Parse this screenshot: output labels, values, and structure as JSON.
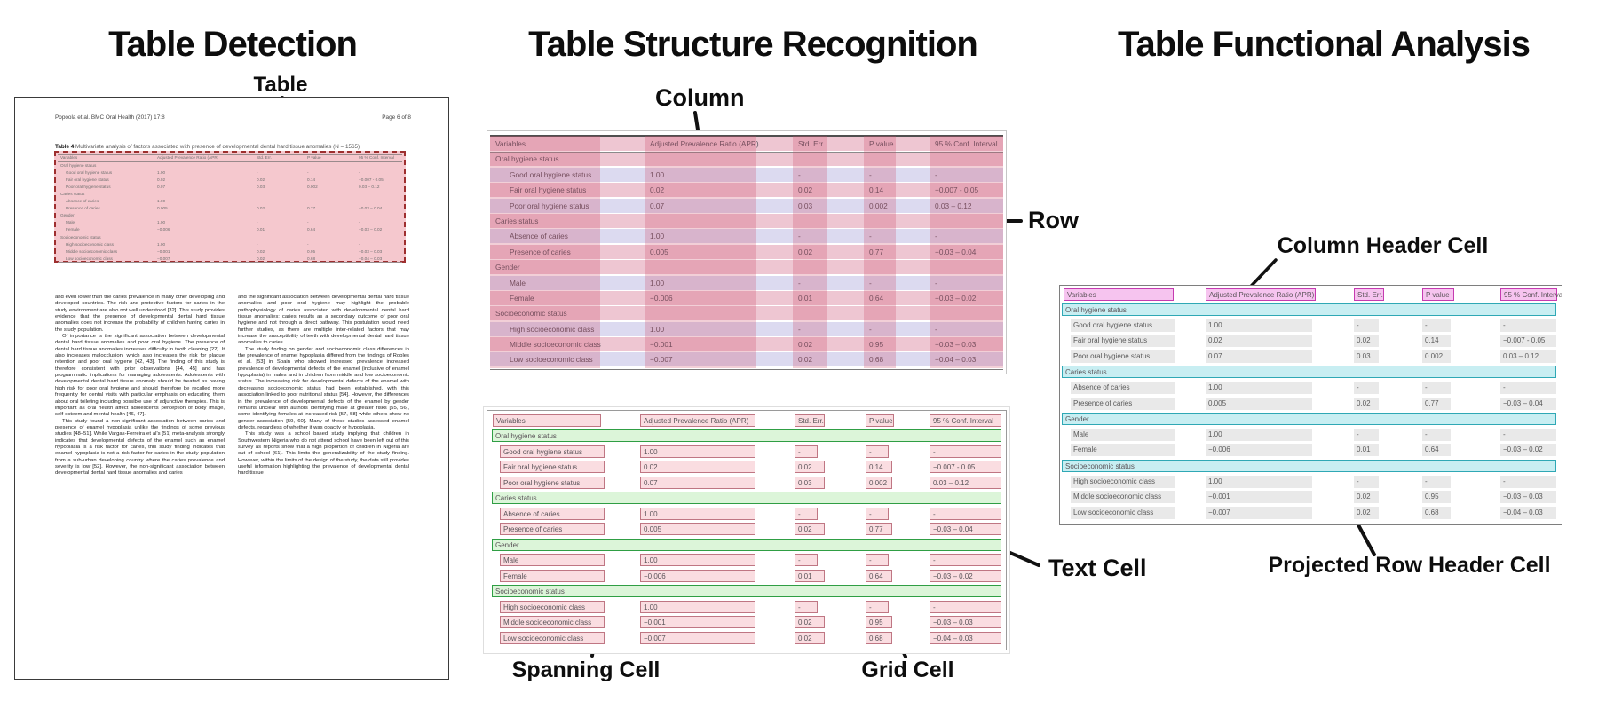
{
  "panels": {
    "detection": {
      "title": "Table Detection",
      "label_table": "Table"
    },
    "structure": {
      "title": "Table Structure Recognition",
      "label_column": "Column",
      "label_row": "Row",
      "label_text_cell": "Text Cell",
      "label_spanning_cell": "Spanning Cell",
      "label_grid_cell": "Grid Cell"
    },
    "functional": {
      "title": "Table Functional Analysis",
      "label_column_header_cell": "Column Header Cell",
      "label_projected_row_header_cell": "Projected Row Header Cell"
    }
  },
  "document": {
    "header_left": "Popoola et al. BMC Oral Health  (2017) 17:8",
    "header_right": "Page 6 of 8",
    "caption_bold": "Table 4",
    "caption_rest": " Multivariate analysis of factors associated with presence of developmental dental hard tissue anomalies (N = 1565)",
    "left_column": [
      "and even lower than the caries prevalence in many other developing and developed countries. The risk and protective factors for caries in the study environment are also not well understood [32]. This study provides evidence that the presence of developmental dental hard tissue anomalies does not increase the probability of children having caries in the study population.",
      "Of importance is the significant association between developmental dental hard tissue anomalies and poor oral hygiene. The presence of dental hard tissue anomalies increases difficulty in tooth cleaning [22]. It also increases malocclusion, which also increases the risk for plaque retention and poor oral hygiene [42, 43]. The finding of this study is therefore consistent with prior observations [44, 45] and has programmatic implications for managing adolescents. Adolescents with developmental dental hard tissue anomaly should be treated as having high risk for poor oral hygiene and should therefore be recalled more frequently for dental visits with particular emphasis on educating them about oral toileting including possible use of adjunctive therapies. This is important as oral health affect adolescents perception of body image, self-esteem and mental health [46, 47].",
      "This study found a non-significant association between caries and presence of enamel hypoplasia unlike the findings of some previous studies [48–51]. While Vargas-Ferreira et al's [51] meta-analysis strongly indicates that developmental defects of the enamel such as enamel hypoplasia is a risk factor for caries, this study finding indicates that enamel hypoplasia is not a risk factor for caries in the study population from a sub-urban developing country where the caries prevalence and severity is low [52]. However, the non-significant association between developmental dental hard tissue anomalies and caries"
    ],
    "right_column": [
      "and the significant association between developmental dental hard tissue anomalies and poor oral hygiene may highlight the probable pathophysiology of caries associated with developmental dental hard tissue anomalies: caries results as a secondary outcome of poor oral hygiene and not through a direct pathway. This postulation would need further studies, as there are multiple inter-related factors that may increase the susceptibility of teeth with developmental dental hard tissue anomalies to caries.",
      "The study finding on gender and socioeconomic class differences in the prevalence of enamel hypoplasia differed from the findings of Robles et al. [53] in Spain who showed increased prevalence increased prevalence of developmental defects of the enamel (inclusive of enamel hypoplasia) in males and in children from middle and low socioeconomic status. The increasing risk for developmental defects of the enamel with decreasing socioeconomic status had been established, with this association linked to poor nutritional status [54]. However, the differences in the prevalence of developmental defects of the enamel by gender remains unclear with authors identifying male at greater risks [55, 56], some identifying females at increased risk [57, 58] while others show no gender association [59, 60]. Many of these studies assessed enamel defects, regardless of whether it was opacity or hypoplasia.",
      "This study was a school based study implying that children in Southwestern Nigeria who do not attend school have been left out of this survey as reports show that a high proportion of children in Nigeria are out of school [61]. This limits the generalizability of the study finding. However, within the limits of the design of the study, the data still provides useful information highlighting the prevalence of developmental dental hard tissue"
    ]
  },
  "table_data": {
    "type": "table",
    "columns": [
      "Variables",
      "Adjusted Prevalence Ratio (APR)",
      "Std. Err.",
      "P value",
      "95 % Conf. Interval"
    ],
    "sections": [
      {
        "name": "Oral hygiene status",
        "rows": [
          {
            "label": "Good oral hygiene status",
            "values": [
              "1.00",
              "-",
              "-",
              "-"
            ]
          },
          {
            "label": "Fair oral hygiene status",
            "values": [
              "0.02",
              "0.02",
              "0.14",
              "−0.007 - 0.05"
            ]
          },
          {
            "label": "Poor oral hygiene status",
            "values": [
              "0.07",
              "0.03",
              "0.002",
              "0.03 – 0.12"
            ]
          }
        ]
      },
      {
        "name": "Caries status",
        "rows": [
          {
            "label": "Absence of caries",
            "values": [
              "1.00",
              "-",
              "-",
              "-"
            ]
          },
          {
            "label": "Presence of caries",
            "values": [
              "0.005",
              "0.02",
              "0.77",
              "−0.03 – 0.04"
            ]
          }
        ]
      },
      {
        "name": "Gender",
        "rows": [
          {
            "label": "Male",
            "values": [
              "1.00",
              "-",
              "-",
              "-"
            ]
          },
          {
            "label": "Female",
            "values": [
              "−0.006",
              "0.01",
              "0.64",
              "−0.03 – 0.02"
            ]
          }
        ]
      },
      {
        "name": "Socioeconomic status",
        "rows": [
          {
            "label": "High socioeconomic class",
            "values": [
              "1.00",
              "-",
              "-",
              "-"
            ]
          },
          {
            "label": "Middle socioeconomic class",
            "values": [
              "−0.001",
              "0.02",
              "0.95",
              "−0.03 – 0.03"
            ]
          },
          {
            "label": "Low socioeconomic class",
            "values": [
              "−0.007",
              "0.02",
              "0.68",
              "−0.04 – 0.03"
            ]
          }
        ]
      }
    ]
  },
  "colors": {
    "detection_fill": "#f5c8ce",
    "detection_border": "#9e2f2f",
    "row_band_lavender": "#dcdaf0",
    "row_band_pink": "#eec6d2",
    "column_band": "rgba(207,77,106,0.27)",
    "text_cell_fill": "#fadde1",
    "text_cell_border": "#bf7683",
    "spanning_fill": "#dcf5d9",
    "spanning_border": "#2f9e44",
    "column_header_fill": "#f6c4ef",
    "column_header_border": "#c53bb0",
    "projected_fill": "#c8eef2",
    "projected_border": "#2fa8b5",
    "grid_cell_fill": "#e9e9e9",
    "annotation_line": "#111111"
  }
}
